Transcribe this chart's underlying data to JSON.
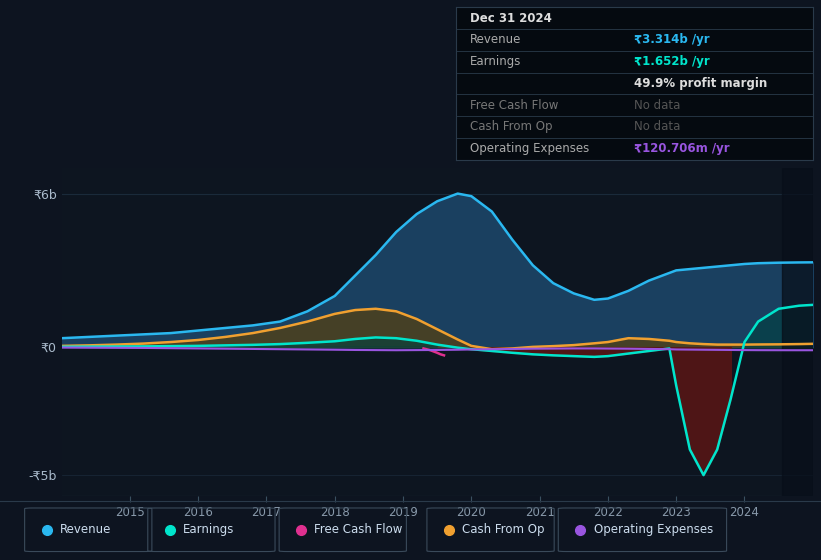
{
  "bg_color": "#0d1420",
  "plot_bg_color": "#0d1520",
  "grid_color": "#1a2a3a",
  "ylim": [
    -5800000000.0,
    7000000000.0
  ],
  "years": [
    2014.0,
    2014.4,
    2014.8,
    2015.2,
    2015.6,
    2016.0,
    2016.4,
    2016.8,
    2017.2,
    2017.6,
    2018.0,
    2018.3,
    2018.6,
    2018.9,
    2019.2,
    2019.5,
    2019.8,
    2020.0,
    2020.3,
    2020.6,
    2020.9,
    2021.2,
    2021.5,
    2021.8,
    2022.0,
    2022.3,
    2022.6,
    2022.9,
    2023.0,
    2023.2,
    2023.4,
    2023.6,
    2023.8,
    2024.0,
    2024.2,
    2024.5,
    2024.8,
    2025.0
  ],
  "revenue": [
    350000000.0,
    400000000.0,
    450000000.0,
    500000000.0,
    550000000.0,
    650000000.0,
    750000000.0,
    850000000.0,
    1000000000.0,
    1400000000.0,
    2000000000.0,
    2800000000.0,
    3600000000.0,
    4500000000.0,
    5200000000.0,
    5700000000.0,
    6000000000.0,
    5900000000.0,
    5300000000.0,
    4200000000.0,
    3200000000.0,
    2500000000.0,
    2100000000.0,
    1850000000.0,
    1900000000.0,
    2200000000.0,
    2600000000.0,
    2900000000.0,
    3000000000.0,
    3050000000.0,
    3100000000.0,
    3150000000.0,
    3200000000.0,
    3250000000.0,
    3280000000.0,
    3300000000.0,
    3310000000.0,
    3314000000.0
  ],
  "earnings": [
    15000000.0,
    20000000.0,
    25000000.0,
    30000000.0,
    40000000.0,
    50000000.0,
    70000000.0,
    90000000.0,
    120000000.0,
    170000000.0,
    230000000.0,
    320000000.0,
    380000000.0,
    350000000.0,
    250000000.0,
    100000000.0,
    -20000000.0,
    -80000000.0,
    -150000000.0,
    -220000000.0,
    -280000000.0,
    -320000000.0,
    -350000000.0,
    -380000000.0,
    -350000000.0,
    -250000000.0,
    -150000000.0,
    -50000000.0,
    -1500000000.0,
    -4000000000.0,
    -5000000000.0,
    -4000000000.0,
    -2000000000.0,
    200000000.0,
    1000000000.0,
    1500000000.0,
    1620000000.0,
    1652000000.0
  ],
  "cash_from_op": [
    50000000.0,
    70000000.0,
    100000000.0,
    140000000.0,
    200000000.0,
    280000000.0,
    400000000.0,
    550000000.0,
    750000000.0,
    1000000000.0,
    1300000000.0,
    1450000000.0,
    1500000000.0,
    1400000000.0,
    1100000000.0,
    700000000.0,
    300000000.0,
    50000000.0,
    -80000000.0,
    -50000000.0,
    10000000.0,
    40000000.0,
    80000000.0,
    150000000.0,
    200000000.0,
    350000000.0,
    320000000.0,
    250000000.0,
    200000000.0,
    150000000.0,
    120000000.0,
    100000000.0,
    100000000.0,
    100000000.0,
    105000000.0,
    110000000.0,
    120000000.0,
    130000000.0
  ],
  "op_expenses": [
    -15000000.0,
    -20000000.0,
    -25000000.0,
    -30000000.0,
    -40000000.0,
    -50000000.0,
    -60000000.0,
    -70000000.0,
    -80000000.0,
    -90000000.0,
    -100000000.0,
    -110000000.0,
    -115000000.0,
    -120000000.0,
    -115000000.0,
    -110000000.0,
    -100000000.0,
    -90000000.0,
    -80000000.0,
    -70000000.0,
    -60000000.0,
    -55000000.0,
    -50000000.0,
    -50000000.0,
    -55000000.0,
    -60000000.0,
    -70000000.0,
    -80000000.0,
    -90000000.0,
    -95000000.0,
    -100000000.0,
    -105000000.0,
    -110000000.0,
    -115000000.0,
    -118000000.0,
    -120000000.0,
    -121000000.0,
    -120700000.0
  ],
  "fcf_x": [
    2019.3,
    2019.4,
    2019.5,
    2019.55,
    2019.6
  ],
  "fcf_y": [
    -50000000.0,
    -120000000.0,
    -220000000.0,
    -280000000.0,
    -320000000.0
  ],
  "revenue_line_color": "#2ab8f0",
  "revenue_fill_color": "#1a4060",
  "earnings_line_color": "#00e5cc",
  "earnings_neg_fill_color": "#5a1515",
  "earnings_pos_fill_color": "#004040",
  "cash_from_op_line_color": "#f0a030",
  "cash_from_op_fill_color": "#4a4020",
  "op_expenses_line_color": "#9955e0",
  "fcf_line_color": "#e03090",
  "infobox_bg": "#050a10",
  "infobox_border": "#2a3a4a",
  "legend_labels": [
    "Revenue",
    "Earnings",
    "Free Cash Flow",
    "Cash From Op",
    "Operating Expenses"
  ],
  "legend_colors": [
    "#2ab8f0",
    "#00e5cc",
    "#e03090",
    "#f0a030",
    "#9955e0"
  ],
  "xtick_years": [
    2015,
    2016,
    2017,
    2018,
    2019,
    2020,
    2021,
    2022,
    2023,
    2024
  ],
  "ytick_vals": [
    -5000000000.0,
    0,
    6000000000.0
  ],
  "ytick_labels": [
    "-₹5b",
    "₹0",
    "₹6b"
  ],
  "info_rows": [
    {
      "label": "Dec 31 2024",
      "value": "",
      "label_color": "#dddddd",
      "value_color": "#dddddd",
      "bold_label": true,
      "bold_value": false
    },
    {
      "label": "Revenue",
      "value": "₹3.314b /yr",
      "label_color": "#aaaaaa",
      "value_color": "#2ab8f0",
      "bold_label": false,
      "bold_value": true
    },
    {
      "label": "Earnings",
      "value": "₹1.652b /yr",
      "label_color": "#aaaaaa",
      "value_color": "#00e5cc",
      "bold_label": false,
      "bold_value": true
    },
    {
      "label": "",
      "value": "49.9% profit margin",
      "label_color": "#aaaaaa",
      "value_color": "#dddddd",
      "bold_label": false,
      "bold_value": true
    },
    {
      "label": "Free Cash Flow",
      "value": "No data",
      "label_color": "#777777",
      "value_color": "#555555",
      "bold_label": false,
      "bold_value": false
    },
    {
      "label": "Cash From Op",
      "value": "No data",
      "label_color": "#777777",
      "value_color": "#555555",
      "bold_label": false,
      "bold_value": false
    },
    {
      "label": "Operating Expenses",
      "value": "₹120.706m /yr",
      "label_color": "#aaaaaa",
      "value_color": "#9955e0",
      "bold_label": false,
      "bold_value": true
    }
  ]
}
